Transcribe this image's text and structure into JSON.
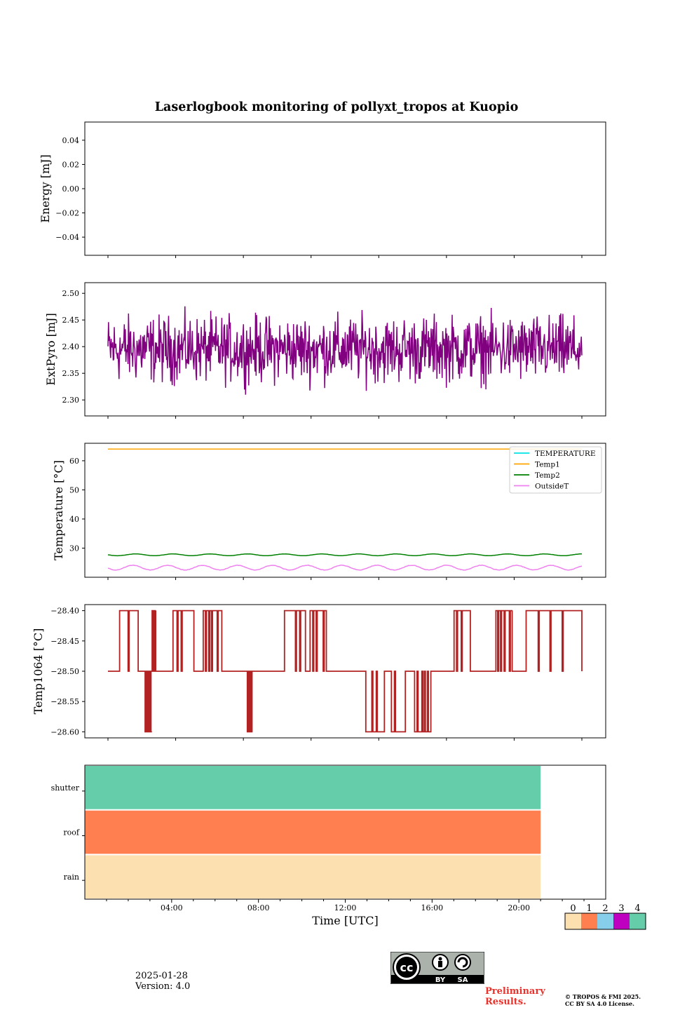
{
  "title": "Laserlogbook monitoring of pollyxt_tropos at Kuopio",
  "footer": {
    "date": "2025-01-28",
    "version": "Version: 4.0",
    "preliminary": [
      "Preliminary",
      "Results."
    ],
    "copyright": [
      "© TROPOS & FMI 2025.",
      "CC BY SA 4.0 License."
    ],
    "license_badge": [
      "BY",
      "SA"
    ]
  },
  "chart_data": [
    {
      "type": "line",
      "panel": "energy",
      "ylabel": "Energy [mJ]",
      "ylim": [
        -0.055,
        0.055
      ],
      "yticks": [
        0.04,
        0.02,
        0.0,
        -0.02,
        -0.04
      ],
      "ytick_labels": [
        "0.04",
        "0.02",
        "0.00",
        "−0.02",
        "−0.04"
      ],
      "series": []
    },
    {
      "type": "line",
      "panel": "extpyro",
      "ylabel": "ExtPyro [mJ]",
      "ylim": [
        2.27,
        2.52
      ],
      "yticks": [
        2.5,
        2.45,
        2.4,
        2.35,
        2.3
      ],
      "ytick_labels": [
        "2.50",
        "2.45",
        "2.40",
        "2.35",
        "2.30"
      ],
      "series": [
        {
          "color": "#800080",
          "x_range_hours": [
            0.8,
            21.2
          ],
          "mean": 2.395,
          "spread": 0.05,
          "min": 2.28,
          "max": 2.505
        }
      ]
    },
    {
      "type": "line",
      "panel": "temperature",
      "ylabel": "Temperature [°C]",
      "ylim": [
        20,
        66
      ],
      "yticks": [
        60,
        50,
        40,
        30
      ],
      "ytick_labels": [
        "60",
        "50",
        "40",
        "30"
      ],
      "legend_position": "top-right",
      "series": [
        {
          "name": "TEMPERATURE",
          "color": "#00e5e5",
          "values": []
        },
        {
          "name": "Temp1",
          "color": "#ffa500",
          "x_range_hours": [
            0.8,
            21.2
          ],
          "value": 64.0
        },
        {
          "name": "Temp2",
          "color": "#008000",
          "x_range_hours": [
            0.8,
            21.2
          ],
          "mean": 27.7,
          "amplitude": 0.3
        },
        {
          "name": "OutsideT",
          "color": "#ee82ee",
          "x_range_hours": [
            0.8,
            21.2
          ],
          "mean": 23.3,
          "amplitude": 0.8
        }
      ]
    },
    {
      "type": "line",
      "panel": "temp1064",
      "ylabel": "Temp1064 [°C]",
      "ylim": [
        -28.61,
        -28.39
      ],
      "yticks": [
        -28.4,
        -28.45,
        -28.5,
        -28.55,
        -28.6
      ],
      "ytick_labels": [
        "−28.40",
        "−28.45",
        "−28.50",
        "−28.55",
        "−28.60"
      ],
      "series": [
        {
          "color": "#b22222",
          "x_range_hours": [
            0.8,
            21.2
          ],
          "levels": [
            -28.4,
            -28.5,
            -28.6
          ],
          "baseline": -28.5,
          "high_intervals_hours": [
            [
              1.3,
              2.1
            ],
            [
              2.7,
              2.8
            ],
            [
              3.6,
              4.5
            ],
            [
              4.9,
              5.7
            ],
            [
              8.4,
              9.3
            ],
            [
              9.5,
              10.2
            ],
            [
              15.7,
              16.4
            ],
            [
              17.5,
              18.2
            ],
            [
              18.8,
              21.2
            ]
          ],
          "low_intervals_hours": [
            [
              2.4,
              2.6
            ],
            [
              6.8,
              7.0
            ],
            [
              11.9,
              12.7
            ],
            [
              13.0,
              13.6
            ],
            [
              14.0,
              14.7
            ]
          ]
        }
      ]
    },
    {
      "type": "heatmap",
      "panel": "status",
      "xlabel": "Time [UTC]",
      "x_range_hours": [
        0,
        24
      ],
      "xtick_labels": [
        "04:00",
        "08:00",
        "12:00",
        "16:00",
        "20:00"
      ],
      "xticks_hours": [
        4,
        8,
        12,
        16,
        20
      ],
      "rows": [
        "shutter",
        "roof",
        "rain"
      ],
      "row_values": [
        4,
        1,
        0
      ],
      "data_end_hours": 21.0,
      "colorbar": {
        "labels": [
          "0",
          "1",
          "2",
          "3",
          "4"
        ],
        "colors": [
          "#fde0b0",
          "#ff7f50",
          "#87ceeb",
          "#c000c0",
          "#66cdaa"
        ]
      }
    }
  ]
}
